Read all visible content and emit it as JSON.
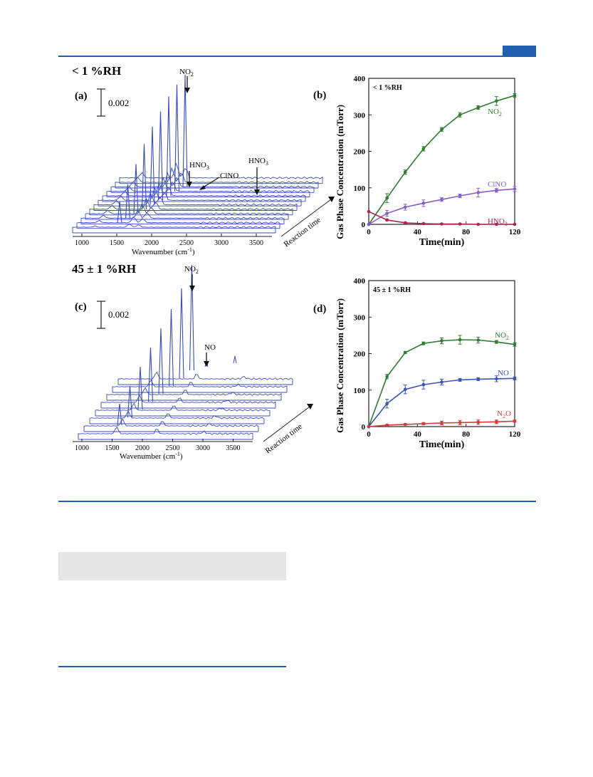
{
  "colors": {
    "rule": "#1f5fae",
    "grey_box": "#e6e6e6",
    "spectra": "#3a4db8",
    "no2": "#2e7d32",
    "clno": "#8a5cc8",
    "hno3": "#b0254f",
    "no": "#3a55b8",
    "n2o": "#d23b3b",
    "hno3_b": "#c0392b"
  },
  "panel_a": {
    "condition": "< 1 %RH",
    "letter": "(a)",
    "scale": "0.002",
    "labels": {
      "no2": "NO2",
      "hno3_left": "HNO3",
      "clno": "ClNO",
      "hno3_right": "HNO3"
    },
    "xticks": [
      "1000",
      "1500",
      "2000",
      "2500",
      "3000",
      "3500"
    ],
    "xlabel": "Wavenumber (cm-1)",
    "time_axis": "Reaction time"
  },
  "panel_c": {
    "condition": "45 ± 1 %RH",
    "letter": "(c)",
    "scale": "0.002",
    "labels": {
      "no2": "NO2",
      "no": "NO"
    },
    "xticks": [
      "1000",
      "1500",
      "2000",
      "2500",
      "3000",
      "3500"
    ],
    "xlabel": "Wavenumber (cm-1)",
    "time_axis": "Reaction time"
  },
  "chart_data": [
    {
      "type": "line",
      "panel": "(b)",
      "annotation": "< 1 %RH",
      "xlabel": "Time(min)",
      "ylabel": "Gas Phase Concentration (mTorr)",
      "xlim": [
        0,
        120
      ],
      "ylim": [
        0,
        400
      ],
      "xticks": [
        0,
        40,
        80,
        120
      ],
      "yticks": [
        0,
        100,
        200,
        300,
        400
      ],
      "series": [
        {
          "name": "NO2",
          "color": "#2e7d32",
          "x": [
            0,
            15,
            30,
            45,
            60,
            75,
            90,
            105,
            120
          ],
          "y": [
            0,
            72,
            143,
            207,
            260,
            300,
            320,
            338,
            353
          ],
          "err": [
            0,
            12,
            6,
            6,
            5,
            6,
            5,
            12,
            5
          ]
        },
        {
          "name": "ClNO",
          "color": "#8a5cc8",
          "x": [
            0,
            15,
            30,
            45,
            60,
            75,
            90,
            105,
            120
          ],
          "y": [
            0,
            30,
            47,
            58,
            68,
            78,
            87,
            93,
            97
          ],
          "err": [
            0,
            8,
            8,
            9,
            5,
            5,
            12,
            5,
            7
          ]
        },
        {
          "name": "HNO3",
          "color": "#b0254f",
          "x": [
            0,
            15,
            30,
            45,
            60,
            75,
            90,
            105,
            120
          ],
          "y": [
            35,
            12,
            4,
            2,
            1,
            1,
            0,
            0,
            0
          ],
          "err": [
            0,
            2,
            2,
            1,
            1,
            1,
            0,
            0,
            0
          ]
        }
      ]
    },
    {
      "type": "line",
      "panel": "(d)",
      "annotation": "45 ± 1 %RH",
      "xlabel": "Time(min)",
      "ylabel": "Gas Phase Concentration (mTorr)",
      "xlim": [
        0,
        120
      ],
      "ylim": [
        0,
        400
      ],
      "xticks": [
        0,
        40,
        80,
        120
      ],
      "yticks": [
        0,
        100,
        200,
        300,
        400
      ],
      "series": [
        {
          "name": "NO2",
          "color": "#2e7d32",
          "x": [
            0,
            15,
            30,
            45,
            60,
            75,
            90,
            105,
            120
          ],
          "y": [
            0,
            137,
            203,
            228,
            235,
            238,
            237,
            232,
            225
          ],
          "err": [
            0,
            6,
            3,
            4,
            8,
            12,
            8,
            4,
            5
          ]
        },
        {
          "name": "NO",
          "color": "#3a55b8",
          "x": [
            0,
            15,
            30,
            45,
            60,
            75,
            90,
            105,
            120
          ],
          "y": [
            0,
            63,
            102,
            115,
            122,
            128,
            130,
            131,
            132
          ],
          "err": [
            0,
            12,
            12,
            12,
            8,
            4,
            4,
            8,
            4
          ]
        },
        {
          "name": "N2O",
          "color": "#d23b3b",
          "x": [
            0,
            15,
            30,
            45,
            60,
            75,
            90,
            105,
            120
          ],
          "y": [
            0,
            4,
            6,
            8,
            10,
            11,
            12,
            13,
            15
          ],
          "err": [
            0,
            2,
            2,
            3,
            5,
            6,
            6,
            5,
            3
          ]
        }
      ]
    }
  ]
}
